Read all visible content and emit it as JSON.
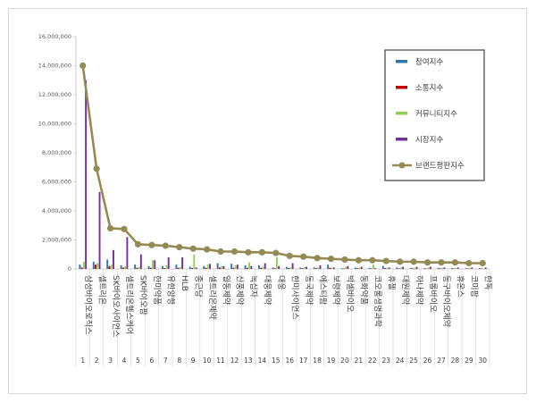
{
  "chart_data": {
    "type": "bar",
    "categories": [
      "삼성바이오로직스",
      "셀트리온",
      "SK바이오사이언스",
      "셀트리온헬스케어",
      "SK바이오팜",
      "한미약품",
      "유한양행",
      "HLB",
      "종근당",
      "셀트리온제약",
      "일동제약",
      "신풍제약",
      "녹십자",
      "대웅제약",
      "대웅",
      "한미사이언스",
      "동국제약",
      "에스티팜",
      "보령제약",
      "박셀바이오",
      "동화약품",
      "코오롱생명과학",
      "휴젤",
      "대원제약",
      "하나제약",
      "프롬바이오",
      "동구바이오제약",
      "휴온스",
      "코미팜",
      "한독"
    ],
    "numbers": [
      "1",
      "2",
      "3",
      "4",
      "5",
      "6",
      "7",
      "8",
      "9",
      "10",
      "11",
      "12",
      "13",
      "14",
      "15",
      "16",
      "17",
      "18",
      "19",
      "20",
      "21",
      "22",
      "23",
      "24",
      "25",
      "26",
      "27",
      "28",
      "29",
      "30"
    ],
    "ylim": [
      0,
      16000000
    ],
    "yticks": [
      "0",
      "2,000,000",
      "4,000,000",
      "6,000,000",
      "8,000,000",
      "10,000,000",
      "12,000,000",
      "14,000,000",
      "16,000,000"
    ],
    "legend_position": "right",
    "series": [
      {
        "name": "참여지수",
        "kind": "bar",
        "color": "#2e75b6",
        "values": [
          300000,
          500000,
          650000,
          250000,
          300000,
          200000,
          200000,
          300000,
          150000,
          200000,
          400000,
          350000,
          250000,
          250000,
          100000,
          150000,
          100000,
          100000,
          300000,
          50000,
          100000,
          80000,
          200000,
          100000,
          80000,
          50000,
          80000,
          60000,
          50000,
          60000
        ]
      },
      {
        "name": "소통지수",
        "kind": "bar",
        "color": "#c00000",
        "values": [
          100000,
          300000,
          200000,
          100000,
          80000,
          80000,
          60000,
          80000,
          60000,
          80000,
          100000,
          80000,
          80000,
          80000,
          50000,
          60000,
          50000,
          50000,
          80000,
          30000,
          50000,
          40000,
          60000,
          40000,
          40000,
          30000,
          40000,
          30000,
          30000,
          30000
        ]
      },
      {
        "name": "커뮤니티지수",
        "kind": "bar",
        "color": "#92d050",
        "values": [
          500000,
          400000,
          300000,
          200000,
          150000,
          600000,
          250000,
          150000,
          1000000,
          300000,
          200000,
          250000,
          450000,
          150000,
          800000,
          100000,
          150000,
          100000,
          100000,
          150000,
          100000,
          300000,
          80000,
          100000,
          80000,
          100000,
          80000,
          80000,
          80000,
          50000
        ]
      },
      {
        "name": "시장지수",
        "kind": "bar",
        "color": "#7030a0",
        "values": [
          13000000,
          5300000,
          1300000,
          2200000,
          1000000,
          600000,
          800000,
          800000,
          100000,
          350000,
          200000,
          300000,
          200000,
          400000,
          200000,
          400000,
          150000,
          250000,
          100000,
          200000,
          150000,
          50000,
          100000,
          150000,
          150000,
          150000,
          100000,
          100000,
          100000,
          100000
        ]
      },
      {
        "name": "브랜드평판지수",
        "kind": "line",
        "color": "#948a54",
        "values": [
          14000000,
          6900000,
          2800000,
          2750000,
          1700000,
          1650000,
          1600000,
          1500000,
          1400000,
          1350000,
          1200000,
          1200000,
          1150000,
          1150000,
          1100000,
          900000,
          850000,
          750000,
          700000,
          650000,
          600000,
          600000,
          550000,
          500000,
          500000,
          450000,
          450000,
          450000,
          400000,
          400000
        ]
      }
    ]
  }
}
